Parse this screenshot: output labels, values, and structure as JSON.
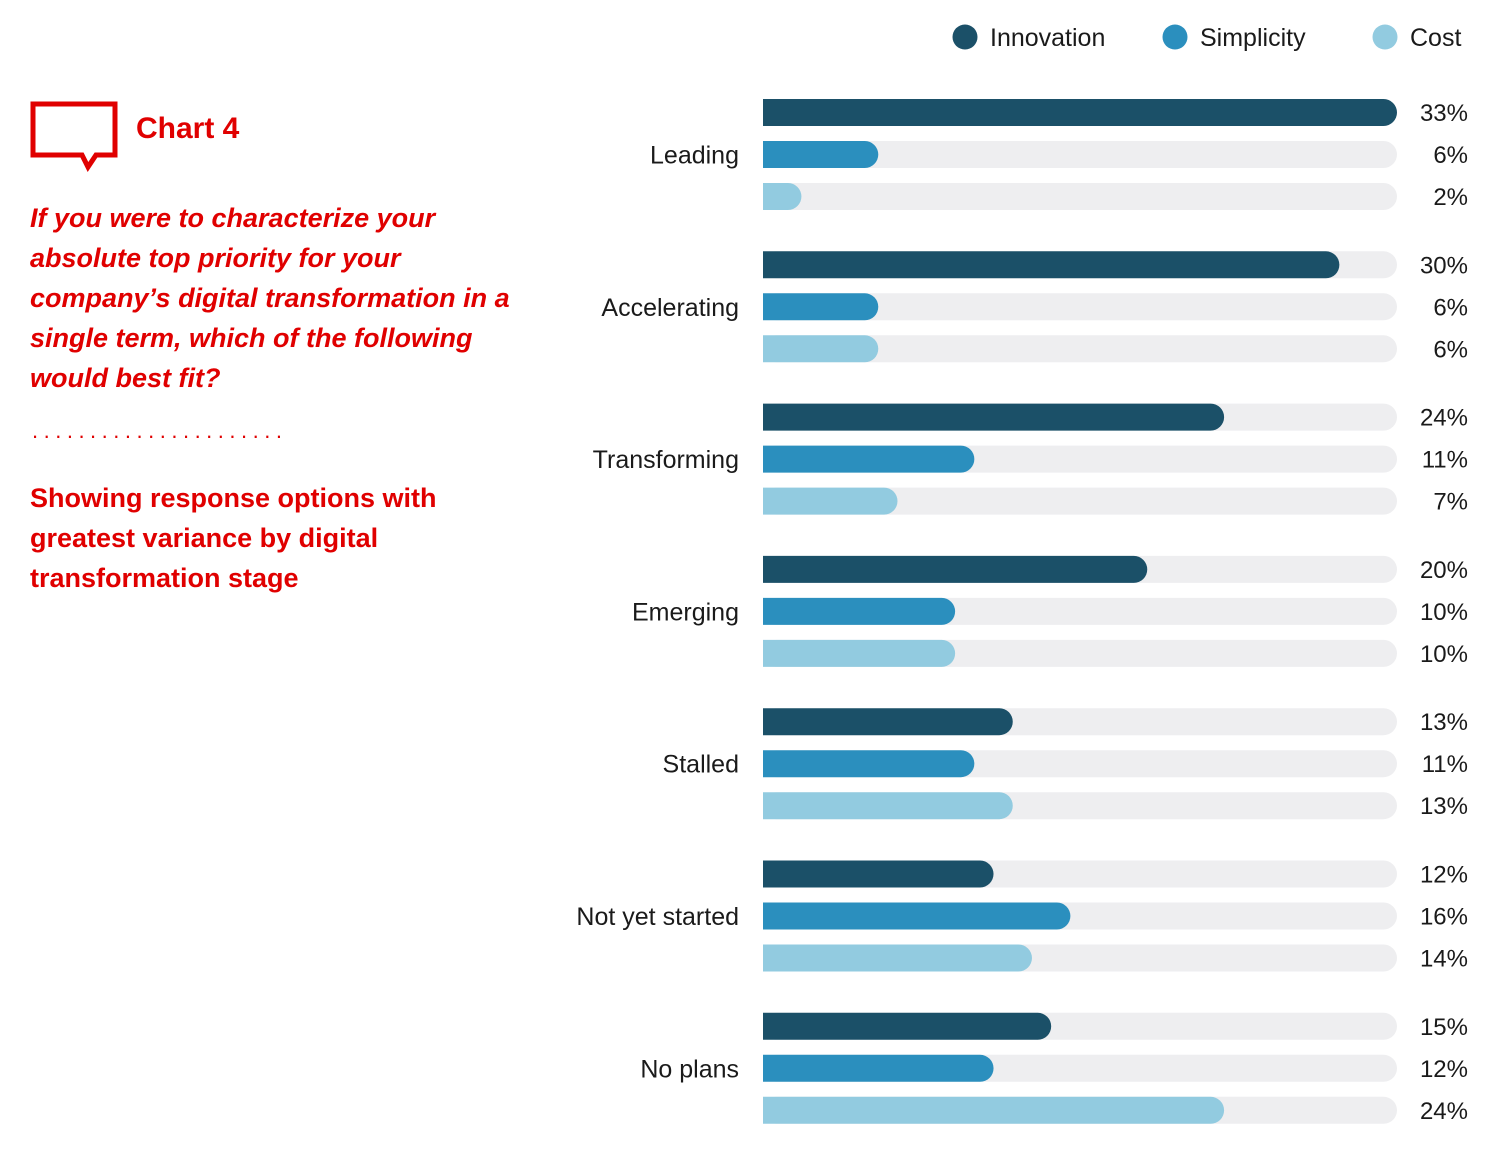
{
  "panel": {
    "chart_label": "Chart 4",
    "question": " If you were to characterize your absolute top priority for your company’s digital transformation in a single term, which of the following would best fit?",
    "dots": "......................",
    "subtitle": "Showing response options with greatest variance by digital transformation stage"
  },
  "colors": {
    "accent": "#e00000",
    "track": "#eeeef0",
    "text": "#1a1a1a"
  },
  "chart_data": {
    "type": "bar",
    "orientation": "horizontal",
    "categories": [
      "Leading",
      "Accelerating",
      "Transforming",
      "Emerging",
      "Stalled",
      "Not yet started",
      "No plans"
    ],
    "series": [
      {
        "name": "Innovation",
        "color": "#1b5068",
        "values": [
          33,
          30,
          24,
          20,
          13,
          12,
          15
        ],
        "labels": [
          "33%",
          "30%",
          "24%",
          "20%",
          "13%",
          "12%",
          "15%"
        ]
      },
      {
        "name": "Simplicity",
        "color": "#2b8fbe",
        "values": [
          6,
          6,
          11,
          10,
          11,
          16,
          12
        ],
        "labels": [
          "6%",
          "6%",
          "11%",
          "10%",
          "11%",
          "16%",
          "12%"
        ]
      },
      {
        "name": "Cost",
        "color": "#92cbe0",
        "values": [
          2,
          6,
          7,
          10,
          13,
          14,
          24
        ],
        "labels": [
          "2%",
          "6%",
          "7%",
          "10%",
          "13%",
          "14%",
          "24%"
        ]
      }
    ],
    "xlim": [
      0,
      33
    ],
    "legend_position": "top-right",
    "grid": false
  }
}
